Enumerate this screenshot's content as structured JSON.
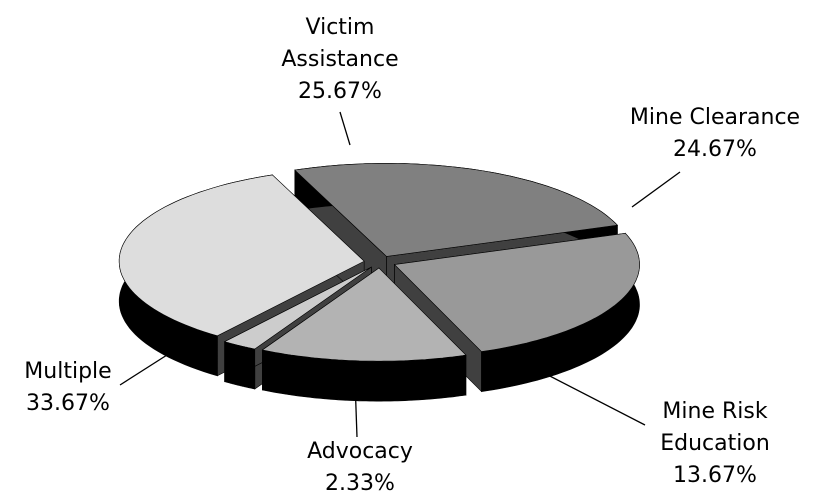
{
  "chart_data": {
    "type": "pie",
    "categories": [
      "Victim Assistance",
      "Mine Clearance",
      "Mine Risk Education",
      "Advocacy",
      "Multiple"
    ],
    "values": [
      25.67,
      24.67,
      13.67,
      2.33,
      33.67
    ],
    "value_labels": [
      "25.67%",
      "24.67%",
      "13.67%",
      "2.33%",
      "33.67%"
    ],
    "colors": [
      "#808080",
      "#999999",
      "#b3b3b3",
      "#cccccc",
      "#dddddd"
    ]
  }
}
